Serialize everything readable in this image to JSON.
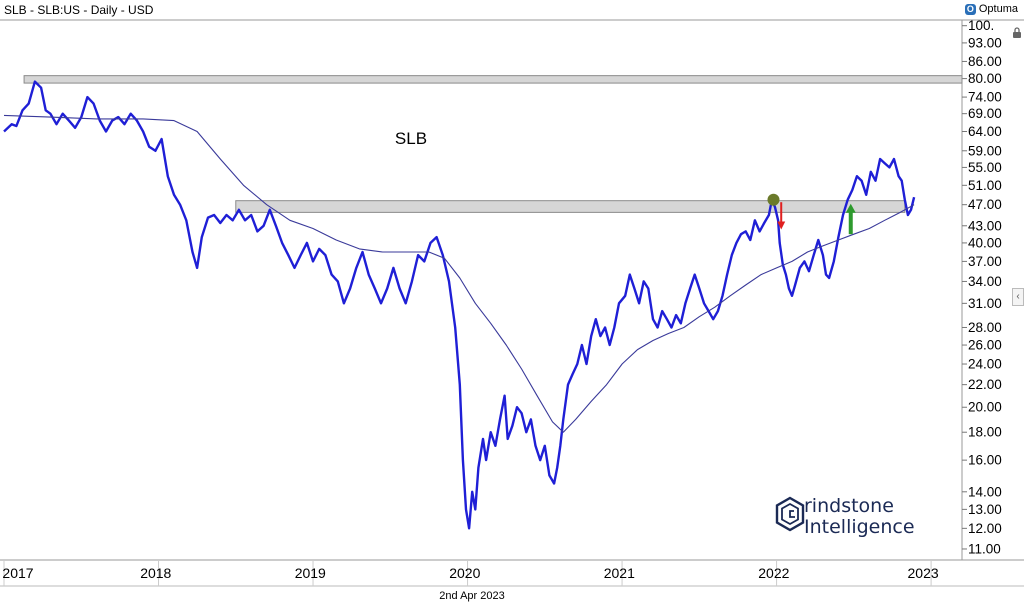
{
  "header": {
    "title": "SLB - SLB:US - Daily - USD",
    "brand": "Optuma",
    "brand_icon": "optuma-logo-icon"
  },
  "side_icons": {
    "lock": "lock-icon",
    "collapse": "chevron-left-icon"
  },
  "footer": {
    "date": "2nd Apr 2023"
  },
  "watermark": {
    "line1": "rindstone",
    "line2": "Intelligence",
    "logo_icon": "grindstone-hex-logo-icon"
  },
  "colors": {
    "price_line": "#1f1fd6",
    "ma_line": "#3a3a9a",
    "zone_fill": "#d6d6d6",
    "zone_stroke": "#8a8a8a",
    "arrow_down": "#e02020",
    "arrow_up": "#2e9a2e",
    "marker": "#6b7a2a"
  },
  "chart_data": {
    "type": "line",
    "title": "SLB",
    "y_scale": "log",
    "ylim": [
      10.5,
      102
    ],
    "xlim": [
      2017.0,
      2023.2
    ],
    "y_ticks": [
      "11.00",
      "12.00",
      "13.00",
      "14.00",
      "16.00",
      "18.00",
      "20.00",
      "22.00",
      "24.00",
      "26.00",
      "28.00",
      "31.00",
      "34.00",
      "37.00",
      "40.00",
      "43.00",
      "47.00",
      "51.00",
      "55.00",
      "59.00",
      "64.00",
      "69.00",
      "74.00",
      "80.00",
      "86.00",
      "93.00",
      "100."
    ],
    "x_ticks": [
      {
        "label": "2017",
        "x": 2017.0
      },
      {
        "label": "2018",
        "x": 2018.0
      },
      {
        "label": "2019",
        "x": 2019.0
      },
      {
        "label": "2020",
        "x": 2020.0
      },
      {
        "label": "2021",
        "x": 2021.0
      },
      {
        "label": "2022",
        "x": 2022.0
      },
      {
        "label": "2023",
        "x": 2023.0
      }
    ],
    "zones": [
      {
        "x0": 2017.13,
        "x1": 2023.2,
        "y_low": 78.5,
        "y_high": 81.0
      },
      {
        "x0": 2018.5,
        "x1": 2022.83,
        "y_low": 45.5,
        "y_high": 47.8
      }
    ],
    "annotations": {
      "marker": {
        "x": 2021.98,
        "y": 48.0
      },
      "arrow_down": {
        "x": 2022.03,
        "y_from": 47.5,
        "y_to": 42.5
      },
      "arrow_up": {
        "x": 2022.48,
        "y_from": 41.5,
        "y_to": 46.8
      }
    },
    "series": [
      {
        "type": "price",
        "points": [
          [
            2017.0,
            64.0
          ],
          [
            2017.05,
            66.0
          ],
          [
            2017.08,
            65.5
          ],
          [
            2017.12,
            70.0
          ],
          [
            2017.16,
            72.0
          ],
          [
            2017.2,
            79.0
          ],
          [
            2017.24,
            77.0
          ],
          [
            2017.27,
            70.0
          ],
          [
            2017.3,
            69.0
          ],
          [
            2017.34,
            66.0
          ],
          [
            2017.38,
            69.0
          ],
          [
            2017.42,
            67.0
          ],
          [
            2017.46,
            65.0
          ],
          [
            2017.5,
            68.0
          ],
          [
            2017.54,
            74.0
          ],
          [
            2017.58,
            72.0
          ],
          [
            2017.62,
            67.0
          ],
          [
            2017.66,
            64.0
          ],
          [
            2017.7,
            67.0
          ],
          [
            2017.74,
            68.0
          ],
          [
            2017.78,
            66.0
          ],
          [
            2017.82,
            69.0
          ],
          [
            2017.86,
            67.0
          ],
          [
            2017.9,
            64.0
          ],
          [
            2017.94,
            60.0
          ],
          [
            2017.98,
            59.0
          ],
          [
            2018.02,
            62.0
          ],
          [
            2018.06,
            53.0
          ],
          [
            2018.1,
            49.0
          ],
          [
            2018.14,
            47.0
          ],
          [
            2018.18,
            44.0
          ],
          [
            2018.22,
            38.5
          ],
          [
            2018.25,
            36.0
          ],
          [
            2018.28,
            41.0
          ],
          [
            2018.32,
            44.5
          ],
          [
            2018.36,
            45.0
          ],
          [
            2018.4,
            43.5
          ],
          [
            2018.44,
            45.0
          ],
          [
            2018.48,
            44.0
          ],
          [
            2018.52,
            46.0
          ],
          [
            2018.56,
            44.0
          ],
          [
            2018.6,
            45.0
          ],
          [
            2018.64,
            42.0
          ],
          [
            2018.68,
            43.0
          ],
          [
            2018.72,
            46.0
          ],
          [
            2018.76,
            43.0
          ],
          [
            2018.8,
            40.0
          ],
          [
            2018.84,
            38.0
          ],
          [
            2018.88,
            36.0
          ],
          [
            2018.92,
            38.0
          ],
          [
            2018.96,
            40.0
          ],
          [
            2019.0,
            37.0
          ],
          [
            2019.04,
            39.0
          ],
          [
            2019.08,
            38.0
          ],
          [
            2019.12,
            35.0
          ],
          [
            2019.16,
            34.0
          ],
          [
            2019.2,
            31.0
          ],
          [
            2019.24,
            33.0
          ],
          [
            2019.28,
            36.0
          ],
          [
            2019.32,
            38.5
          ],
          [
            2019.36,
            35.0
          ],
          [
            2019.4,
            33.0
          ],
          [
            2019.44,
            31.0
          ],
          [
            2019.48,
            33.0
          ],
          [
            2019.52,
            36.0
          ],
          [
            2019.56,
            33.0
          ],
          [
            2019.6,
            31.0
          ],
          [
            2019.64,
            34.0
          ],
          [
            2019.68,
            38.0
          ],
          [
            2019.72,
            37.0
          ],
          [
            2019.76,
            40.0
          ],
          [
            2019.8,
            41.0
          ],
          [
            2019.84,
            38.0
          ],
          [
            2019.88,
            34.0
          ],
          [
            2019.92,
            28.0
          ],
          [
            2019.95,
            22.0
          ],
          [
            2019.97,
            16.0
          ],
          [
            2019.99,
            13.0
          ],
          [
            2020.01,
            12.0
          ],
          [
            2020.03,
            14.0
          ],
          [
            2020.05,
            13.0
          ],
          [
            2020.07,
            15.5
          ],
          [
            2020.1,
            17.5
          ],
          [
            2020.12,
            16.0
          ],
          [
            2020.15,
            18.0
          ],
          [
            2020.18,
            17.0
          ],
          [
            2020.21,
            19.0
          ],
          [
            2020.24,
            21.0
          ],
          [
            2020.26,
            17.5
          ],
          [
            2020.29,
            18.5
          ],
          [
            2020.32,
            20.0
          ],
          [
            2020.35,
            19.5
          ],
          [
            2020.38,
            18.0
          ],
          [
            2020.41,
            19.0
          ],
          [
            2020.44,
            17.0
          ],
          [
            2020.47,
            16.0
          ],
          [
            2020.5,
            17.0
          ],
          [
            2020.53,
            15.0
          ],
          [
            2020.56,
            14.5
          ],
          [
            2020.58,
            15.5
          ],
          [
            2020.6,
            17.0
          ],
          [
            2020.62,
            19.0
          ],
          [
            2020.65,
            22.0
          ],
          [
            2020.68,
            23.0
          ],
          [
            2020.71,
            24.0
          ],
          [
            2020.74,
            26.0
          ],
          [
            2020.77,
            24.0
          ],
          [
            2020.8,
            27.0
          ],
          [
            2020.83,
            29.0
          ],
          [
            2020.86,
            27.0
          ],
          [
            2020.89,
            28.0
          ],
          [
            2020.92,
            26.0
          ],
          [
            2020.95,
            28.0
          ],
          [
            2020.98,
            31.0
          ],
          [
            2021.02,
            32.0
          ],
          [
            2021.05,
            35.0
          ],
          [
            2021.08,
            33.0
          ],
          [
            2021.11,
            31.0
          ],
          [
            2021.14,
            34.0
          ],
          [
            2021.17,
            33.0
          ],
          [
            2021.2,
            29.0
          ],
          [
            2021.23,
            28.0
          ],
          [
            2021.26,
            30.0
          ],
          [
            2021.29,
            29.0
          ],
          [
            2021.32,
            28.0
          ],
          [
            2021.35,
            29.5
          ],
          [
            2021.38,
            28.5
          ],
          [
            2021.41,
            31.0
          ],
          [
            2021.44,
            33.0
          ],
          [
            2021.47,
            35.0
          ],
          [
            2021.5,
            33.0
          ],
          [
            2021.53,
            31.0
          ],
          [
            2021.56,
            30.0
          ],
          [
            2021.59,
            29.0
          ],
          [
            2021.62,
            30.0
          ],
          [
            2021.65,
            32.0
          ],
          [
            2021.68,
            35.0
          ],
          [
            2021.71,
            38.0
          ],
          [
            2021.74,
            40.0
          ],
          [
            2021.77,
            41.5
          ],
          [
            2021.8,
            42.0
          ],
          [
            2021.83,
            40.5
          ],
          [
            2021.86,
            44.0
          ],
          [
            2021.89,
            42.0
          ],
          [
            2021.92,
            43.5
          ],
          [
            2021.95,
            45.0
          ],
          [
            2021.97,
            48.0
          ],
          [
            2021.99,
            46.5
          ],
          [
            2022.01,
            44.0
          ],
          [
            2022.02,
            40.0
          ],
          [
            2022.04,
            36.5
          ],
          [
            2022.06,
            35.0
          ],
          [
            2022.08,
            33.0
          ],
          [
            2022.1,
            32.0
          ],
          [
            2022.12,
            33.5
          ],
          [
            2022.15,
            36.0
          ],
          [
            2022.18,
            37.0
          ],
          [
            2022.21,
            35.5
          ],
          [
            2022.24,
            38.0
          ],
          [
            2022.27,
            40.5
          ],
          [
            2022.3,
            38.0
          ],
          [
            2022.32,
            35.0
          ],
          [
            2022.34,
            34.5
          ],
          [
            2022.37,
            37.0
          ],
          [
            2022.4,
            41.0
          ],
          [
            2022.43,
            45.0
          ],
          [
            2022.46,
            48.0
          ],
          [
            2022.49,
            50.0
          ],
          [
            2022.52,
            53.0
          ],
          [
            2022.55,
            52.0
          ],
          [
            2022.58,
            49.0
          ],
          [
            2022.61,
            54.0
          ],
          [
            2022.64,
            52.0
          ],
          [
            2022.67,
            57.0
          ],
          [
            2022.7,
            56.0
          ],
          [
            2022.73,
            55.0
          ],
          [
            2022.76,
            57.0
          ],
          [
            2022.79,
            53.0
          ],
          [
            2022.81,
            52.0
          ],
          [
            2022.83,
            48.0
          ],
          [
            2022.85,
            45.0
          ],
          [
            2022.87,
            46.0
          ],
          [
            2022.89,
            48.5
          ]
        ]
      },
      {
        "type": "moving_average",
        "points": [
          [
            2017.0,
            68.5
          ],
          [
            2017.3,
            68.0
          ],
          [
            2017.6,
            67.5
          ],
          [
            2017.9,
            67.5
          ],
          [
            2018.1,
            67.0
          ],
          [
            2018.25,
            64.0
          ],
          [
            2018.4,
            57.0
          ],
          [
            2018.55,
            51.0
          ],
          [
            2018.7,
            47.0
          ],
          [
            2018.85,
            44.0
          ],
          [
            2019.0,
            42.5
          ],
          [
            2019.15,
            40.5
          ],
          [
            2019.3,
            39.0
          ],
          [
            2019.45,
            38.5
          ],
          [
            2019.6,
            38.5
          ],
          [
            2019.75,
            38.5
          ],
          [
            2019.85,
            37.5
          ],
          [
            2019.95,
            34.5
          ],
          [
            2020.05,
            31.0
          ],
          [
            2020.15,
            28.5
          ],
          [
            2020.25,
            26.0
          ],
          [
            2020.35,
            23.5
          ],
          [
            2020.45,
            21.0
          ],
          [
            2020.55,
            18.8
          ],
          [
            2020.62,
            18.0
          ],
          [
            2020.7,
            19.0
          ],
          [
            2020.8,
            20.5
          ],
          [
            2020.9,
            22.0
          ],
          [
            2021.0,
            24.0
          ],
          [
            2021.1,
            25.5
          ],
          [
            2021.2,
            26.5
          ],
          [
            2021.3,
            27.3
          ],
          [
            2021.4,
            28.0
          ],
          [
            2021.5,
            29.3
          ],
          [
            2021.6,
            30.5
          ],
          [
            2021.7,
            32.0
          ],
          [
            2021.8,
            33.5
          ],
          [
            2021.9,
            35.0
          ],
          [
            2022.0,
            36.0
          ],
          [
            2022.1,
            37.0
          ],
          [
            2022.2,
            38.5
          ],
          [
            2022.3,
            39.5
          ],
          [
            2022.4,
            40.5
          ],
          [
            2022.5,
            41.5
          ],
          [
            2022.6,
            42.5
          ],
          [
            2022.7,
            44.0
          ],
          [
            2022.8,
            45.5
          ],
          [
            2022.89,
            47.0
          ]
        ]
      }
    ]
  }
}
